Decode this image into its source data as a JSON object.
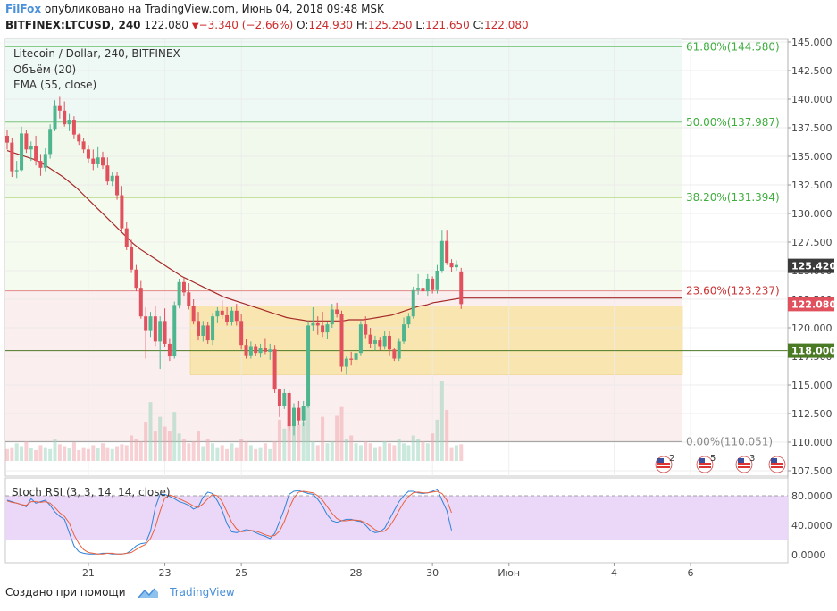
{
  "header": {
    "author": "FilFox",
    "published_text": "опубликовано на TradingView.com, Июнь 04, 2018 09:48 MSK",
    "symbol": "BITFINEX:LTCUSD, 240",
    "last": "122.080",
    "change": "−3.340 (−2.66%)",
    "open_label": "O:",
    "open": "124.930",
    "high_label": "H:",
    "high": "125.250",
    "low_label": "L:",
    "low": "121.650",
    "close_label": "C:",
    "close": "122.080"
  },
  "legend": {
    "title": "Litecoin / Dollar, 240, BITFINEX",
    "volume": "Объём (20)",
    "ema": "EMA (55, close)"
  },
  "rsi_legend": "Stoch RSI (3, 3, 14, 14, close)",
  "footer": {
    "made_with": "Создано при помощи",
    "brand": "TradingView"
  },
  "colors": {
    "up": "#4fb58f",
    "down": "#e0515d",
    "ema": "#a52a2a",
    "accent": "#4a90d9",
    "fib_text": "#3fae3f",
    "band": "#f9e29a"
  },
  "chart_data": [
    {
      "type": "candlestick",
      "title": "Litecoin / Dollar, 240, BITFINEX",
      "ylim": [
        107.5,
        145.0
      ],
      "y_ticks": [
        "145.000",
        "142.500",
        "140.000",
        "137.500",
        "135.000",
        "132.500",
        "130.000",
        "127.500",
        "125.000",
        "122.500",
        "120.000",
        "117.500",
        "115.000",
        "112.500",
        "110.000",
        "107.500"
      ],
      "x_ticks": [
        "21",
        "23",
        "25",
        "28",
        "30",
        "Июн",
        "4",
        "6"
      ],
      "x_tick_index": [
        17,
        33,
        49,
        73,
        89,
        105,
        127,
        143
      ],
      "price_labels": [
        {
          "value": 125.42,
          "text": "125.420",
          "color": "#3a3a3a"
        },
        {
          "value": 122.08,
          "text": "122.080",
          "color": "#e0515d"
        },
        {
          "value": 118.0,
          "text": "118.000",
          "color": "#4b7a25"
        }
      ],
      "fib_levels": [
        {
          "level": "61.80%",
          "value": 144.58,
          "text": "61.80%(144.580)"
        },
        {
          "level": "50.00%",
          "value": 137.987,
          "text": "50.00%(137.987)"
        },
        {
          "level": "38.20%",
          "value": 131.394,
          "text": "38.20%(131.394)"
        },
        {
          "level": "23.60%",
          "value": 123.237,
          "text": "23.60%(123.237)"
        },
        {
          "level": "0.00%",
          "value": 110.051,
          "text": "0.00%(110.051)"
        }
      ],
      "candles": [
        [
          136.8,
          137.3,
          135.6,
          136.2
        ],
        [
          136.2,
          136.6,
          133.2,
          133.7
        ],
        [
          133.7,
          134.6,
          133.1,
          133.8
        ],
        [
          133.8,
          137.6,
          133.7,
          137.0
        ],
        [
          137.0,
          137.3,
          135.3,
          135.6
        ],
        [
          135.6,
          136.3,
          134.6,
          135.9
        ],
        [
          135.9,
          136.8,
          134.2,
          134.6
        ],
        [
          134.6,
          135.2,
          133.3,
          134.0
        ],
        [
          134.0,
          135.7,
          133.7,
          135.2
        ],
        [
          135.2,
          137.8,
          134.8,
          137.4
        ],
        [
          137.4,
          139.9,
          137.2,
          139.4
        ],
        [
          139.4,
          140.2,
          138.3,
          139.0
        ],
        [
          139.0,
          139.8,
          137.6,
          137.8
        ],
        [
          137.8,
          138.7,
          137.2,
          138.2
        ],
        [
          138.2,
          138.5,
          136.5,
          136.9
        ],
        [
          136.9,
          137.0,
          136.0,
          136.3
        ],
        [
          136.3,
          136.6,
          135.3,
          135.6
        ],
        [
          135.6,
          136.0,
          134.4,
          134.8
        ],
        [
          134.8,
          135.6,
          133.8,
          134.3
        ],
        [
          134.3,
          135.8,
          134.0,
          134.9
        ],
        [
          134.9,
          135.4,
          133.9,
          134.2
        ],
        [
          134.2,
          134.9,
          132.5,
          132.8
        ],
        [
          132.8,
          133.6,
          132.4,
          133.3
        ],
        [
          133.3,
          133.6,
          131.2,
          131.6
        ],
        [
          131.6,
          132.4,
          128.4,
          128.7
        ],
        [
          128.7,
          129.3,
          126.8,
          127.1
        ],
        [
          127.1,
          127.7,
          124.8,
          125.1
        ],
        [
          125.1,
          125.5,
          123.2,
          123.5
        ],
        [
          123.5,
          124.1,
          120.8,
          121.0
        ],
        [
          121.0,
          121.8,
          117.3,
          119.8
        ],
        [
          119.8,
          121.4,
          119.2,
          121.0
        ],
        [
          121.0,
          121.9,
          118.4,
          118.8
        ],
        [
          118.8,
          121.0,
          116.4,
          120.6
        ],
        [
          120.6,
          121.7,
          118.3,
          118.6
        ],
        [
          118.6,
          119.1,
          117.1,
          117.5
        ],
        [
          117.5,
          122.3,
          117.3,
          122.0
        ],
        [
          122.0,
          124.3,
          121.7,
          124.0
        ],
        [
          124.0,
          124.4,
          122.8,
          123.1
        ],
        [
          123.1,
          123.9,
          121.6,
          121.9
        ],
        [
          121.9,
          122.5,
          120.3,
          120.6
        ],
        [
          120.6,
          121.4,
          118.9,
          119.3
        ],
        [
          119.3,
          120.6,
          118.8,
          120.2
        ],
        [
          120.2,
          120.5,
          118.6,
          118.9
        ],
        [
          118.9,
          121.3,
          118.5,
          121.0
        ],
        [
          121.0,
          121.8,
          120.4,
          121.5
        ],
        [
          121.5,
          122.4,
          120.8,
          121.1
        ],
        [
          121.1,
          121.8,
          120.2,
          120.5
        ],
        [
          120.5,
          121.8,
          120.2,
          121.5
        ],
        [
          121.5,
          122.1,
          120.2,
          120.6
        ],
        [
          120.6,
          121.2,
          118.1,
          118.5
        ],
        [
          118.5,
          119.0,
          117.3,
          117.6
        ],
        [
          117.6,
          118.8,
          117.3,
          118.4
        ],
        [
          118.4,
          118.6,
          117.5,
          117.8
        ],
        [
          117.8,
          118.6,
          117.4,
          118.2
        ],
        [
          118.2,
          119.1,
          117.7,
          117.9
        ],
        [
          117.9,
          118.6,
          117.2,
          118.1
        ],
        [
          118.1,
          118.5,
          114.3,
          114.6
        ],
        [
          114.6,
          114.7,
          112.2,
          113.2
        ],
        [
          113.2,
          114.7,
          112.9,
          114.3
        ],
        [
          114.3,
          114.5,
          111.0,
          111.4
        ],
        [
          111.4,
          113.4,
          110.6,
          113.0
        ],
        [
          113.0,
          113.6,
          111.5,
          111.9
        ],
        [
          111.9,
          113.6,
          111.4,
          113.2
        ],
        [
          113.2,
          120.6,
          113.0,
          120.2
        ],
        [
          120.2,
          121.8,
          119.7,
          120.4
        ],
        [
          120.4,
          121.0,
          119.4,
          120.2
        ],
        [
          120.2,
          121.4,
          119.2,
          119.6
        ],
        [
          119.6,
          120.5,
          119.0,
          120.3
        ],
        [
          120.3,
          122.1,
          120.0,
          121.6
        ],
        [
          121.6,
          122.2,
          120.9,
          121.2
        ],
        [
          121.2,
          121.5,
          116.2,
          116.6
        ],
        [
          116.6,
          117.5,
          115.9,
          117.3
        ],
        [
          117.3,
          117.9,
          116.7,
          117.2
        ],
        [
          117.2,
          118.3,
          116.9,
          117.8
        ],
        [
          117.8,
          120.6,
          117.6,
          120.3
        ],
        [
          120.3,
          121.0,
          119.1,
          119.4
        ],
        [
          119.4,
          120.0,
          118.2,
          118.6
        ],
        [
          118.6,
          119.3,
          118.0,
          118.9
        ],
        [
          118.9,
          119.2,
          118.0,
          118.4
        ],
        [
          118.4,
          119.7,
          118.1,
          119.3
        ],
        [
          119.3,
          119.7,
          117.6,
          118.1
        ],
        [
          118.1,
          118.2,
          117.1,
          117.3
        ],
        [
          117.3,
          119.1,
          117.1,
          118.8
        ],
        [
          118.8,
          120.9,
          118.6,
          120.3
        ],
        [
          120.3,
          121.3,
          120.0,
          121.0
        ],
        [
          121.0,
          123.6,
          120.8,
          123.3
        ],
        [
          123.3,
          124.7,
          122.9,
          123.5
        ],
        [
          123.5,
          124.2,
          123.0,
          123.2
        ],
        [
          123.2,
          124.7,
          122.8,
          124.3
        ],
        [
          124.3,
          124.5,
          123.0,
          123.3
        ],
        [
          123.3,
          125.5,
          123.0,
          125.0
        ],
        [
          125.0,
          128.5,
          124.8,
          127.6
        ],
        [
          127.6,
          128.5,
          125.5,
          125.7
        ],
        [
          125.7,
          126.0,
          124.9,
          125.3
        ],
        [
          125.3,
          125.9,
          125.0,
          125.5
        ],
        [
          124.93,
          125.25,
          121.65,
          122.08
        ]
      ],
      "volume": [
        12,
        14,
        18,
        15,
        20,
        13,
        11,
        16,
        14,
        12,
        22,
        17,
        15,
        13,
        19,
        11,
        14,
        12,
        16,
        13,
        18,
        14,
        12,
        15,
        17,
        16,
        26,
        22,
        20,
        40,
        60,
        30,
        45,
        35,
        30,
        50,
        28,
        22,
        18,
        20,
        30,
        15,
        22,
        18,
        14,
        16,
        12,
        18,
        14,
        22,
        20,
        16,
        12,
        14,
        18,
        12,
        20,
        42,
        33,
        37,
        38,
        37,
        40,
        60,
        20,
        16,
        45,
        18,
        20,
        46,
        55,
        22,
        26,
        18,
        16,
        20,
        18,
        14,
        15,
        20,
        18,
        16,
        22,
        18,
        16,
        26,
        22,
        20,
        18,
        28,
        42,
        82,
        52,
        14,
        16,
        17
      ],
      "ema_55": [
        135.5,
        135.3,
        135.1,
        134.9,
        134.7,
        134.4,
        134.0,
        133.6,
        133.2,
        132.7,
        132.2,
        131.6,
        131.0,
        130.4,
        129.8,
        129.2,
        128.6,
        128.0,
        127.4,
        126.9,
        126.5,
        126.1,
        125.7,
        125.3,
        124.9,
        124.5,
        124.2,
        123.9,
        123.6,
        123.3,
        123.0,
        122.7,
        122.5,
        122.3,
        122.1,
        121.9,
        121.7,
        121.5,
        121.3,
        121.1,
        120.9,
        120.8,
        120.7,
        120.6,
        120.6,
        120.6,
        120.6,
        120.6,
        120.6,
        120.7,
        120.7,
        120.7,
        120.8,
        120.9,
        121.0,
        121.1,
        121.3,
        121.5,
        121.7,
        121.9,
        122.0,
        122.2,
        122.3,
        122.4,
        122.5,
        122.6
      ]
    },
    {
      "type": "line",
      "title": "Stoch RSI (3, 3, 14, 14, close)",
      "ylim": [
        0,
        100
      ],
      "y_ticks": [
        "80.0000",
        "40.0000",
        "0.0000"
      ],
      "series": [
        {
          "color": "#2f83d8",
          "values": [
            74,
            72,
            70,
            68,
            65,
            76,
            70,
            72,
            74,
            67,
            58,
            52,
            48,
            30,
            12,
            4,
            2,
            1,
            1,
            1,
            2,
            2,
            1,
            1,
            1,
            2,
            6,
            12,
            15,
            16,
            32,
            64,
            82,
            82,
            79,
            76,
            72,
            70,
            67,
            62,
            65,
            78,
            85,
            83,
            73,
            60,
            42,
            31,
            30,
            32,
            34,
            33,
            30,
            27,
            25,
            22,
            29,
            45,
            62,
            82,
            86,
            87,
            85,
            83,
            82,
            75,
            66,
            54,
            46,
            44,
            46,
            48,
            48,
            46,
            45,
            40,
            33,
            30,
            31,
            36,
            48,
            60,
            72,
            80,
            86,
            86,
            84,
            83,
            84,
            86,
            89,
            74,
            60,
            33
          ]
        },
        {
          "color": "#e8613f",
          "values": [
            73,
            71,
            70,
            68,
            67,
            72,
            72,
            71,
            72,
            70,
            64,
            57,
            52,
            43,
            27,
            15,
            7,
            3,
            2,
            1,
            1,
            2,
            2,
            1,
            1,
            2,
            3,
            7,
            11,
            14,
            22,
            37,
            59,
            77,
            81,
            79,
            76,
            73,
            70,
            66,
            64,
            69,
            76,
            82,
            80,
            72,
            58,
            44,
            35,
            31,
            32,
            33,
            32,
            30,
            27,
            25,
            26,
            32,
            45,
            63,
            77,
            85,
            86,
            85,
            84,
            80,
            74,
            65,
            56,
            49,
            46,
            46,
            47,
            47,
            46,
            43,
            39,
            34,
            31,
            32,
            38,
            48,
            60,
            71,
            79,
            84,
            85,
            84,
            84,
            85,
            86,
            83,
            74,
            57
          ]
        }
      ]
    }
  ]
}
